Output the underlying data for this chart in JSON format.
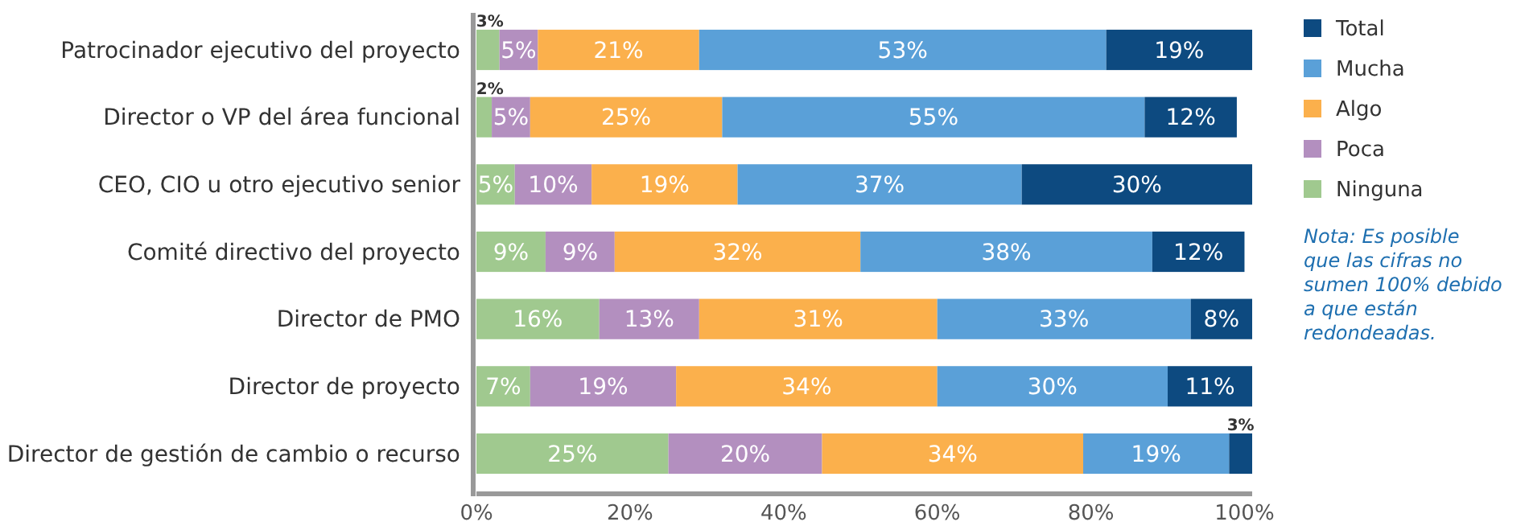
{
  "chart_data": {
    "type": "bar",
    "orientation": "horizontal",
    "stacked": true,
    "categories": [
      "Patrocinador ejecutivo del proyecto",
      "Director o VP del área funcional",
      "CEO, CIO u otro ejecutivo senior",
      "Comité directivo del proyecto",
      "Director de PMO",
      "Director de proyecto",
      "Director de gestión de cambio o recurso"
    ],
    "series": [
      {
        "name": "Ninguna",
        "color": "#a0c98f",
        "values": [
          3,
          2,
          5,
          9,
          16,
          7,
          25
        ],
        "value_labels": [
          "3%",
          "2%",
          "5%",
          "9%",
          "16%",
          "7%",
          "25%"
        ]
      },
      {
        "name": "Poca",
        "color": "#b38fbf",
        "values": [
          5,
          5,
          10,
          9,
          13,
          19,
          20
        ],
        "value_labels": [
          "5%",
          "5%",
          "10%",
          "9%",
          "13%",
          "19%",
          "20%"
        ]
      },
      {
        "name": "Algo",
        "color": "#fbb04c",
        "values": [
          21,
          25,
          19,
          32,
          31,
          34,
          34
        ],
        "value_labels": [
          "21%",
          "25%",
          "19%",
          "32%",
          "31%",
          "34%",
          "34%"
        ]
      },
      {
        "name": "Mucha",
        "color": "#5aa0d8",
        "values": [
          53,
          55,
          37,
          38,
          33,
          30,
          19
        ],
        "value_labels": [
          "53%",
          "55%",
          "37%",
          "38%",
          "33%",
          "30%",
          "19%"
        ]
      },
      {
        "name": "Total",
        "color": "#0d4a80",
        "values": [
          19,
          12,
          30,
          12,
          8,
          11,
          3
        ],
        "value_labels": [
          "19%",
          "12%",
          "30%",
          "12%",
          "8%",
          "11%",
          "3%"
        ]
      }
    ],
    "xlim": [
      0,
      101
    ],
    "xticks": [
      {
        "value": 0,
        "label": "0%"
      },
      {
        "value": 20,
        "label": "20%"
      },
      {
        "value": 40,
        "label": "40%"
      },
      {
        "value": 60,
        "label": "60%"
      },
      {
        "value": 80,
        "label": "80%"
      },
      {
        "value": 100,
        "label": "100%"
      }
    ],
    "legend": "right",
    "annotations": [
      "Nota: Es posible que las cifras no sumen 100% debido a que están redondeadas."
    ]
  }
}
